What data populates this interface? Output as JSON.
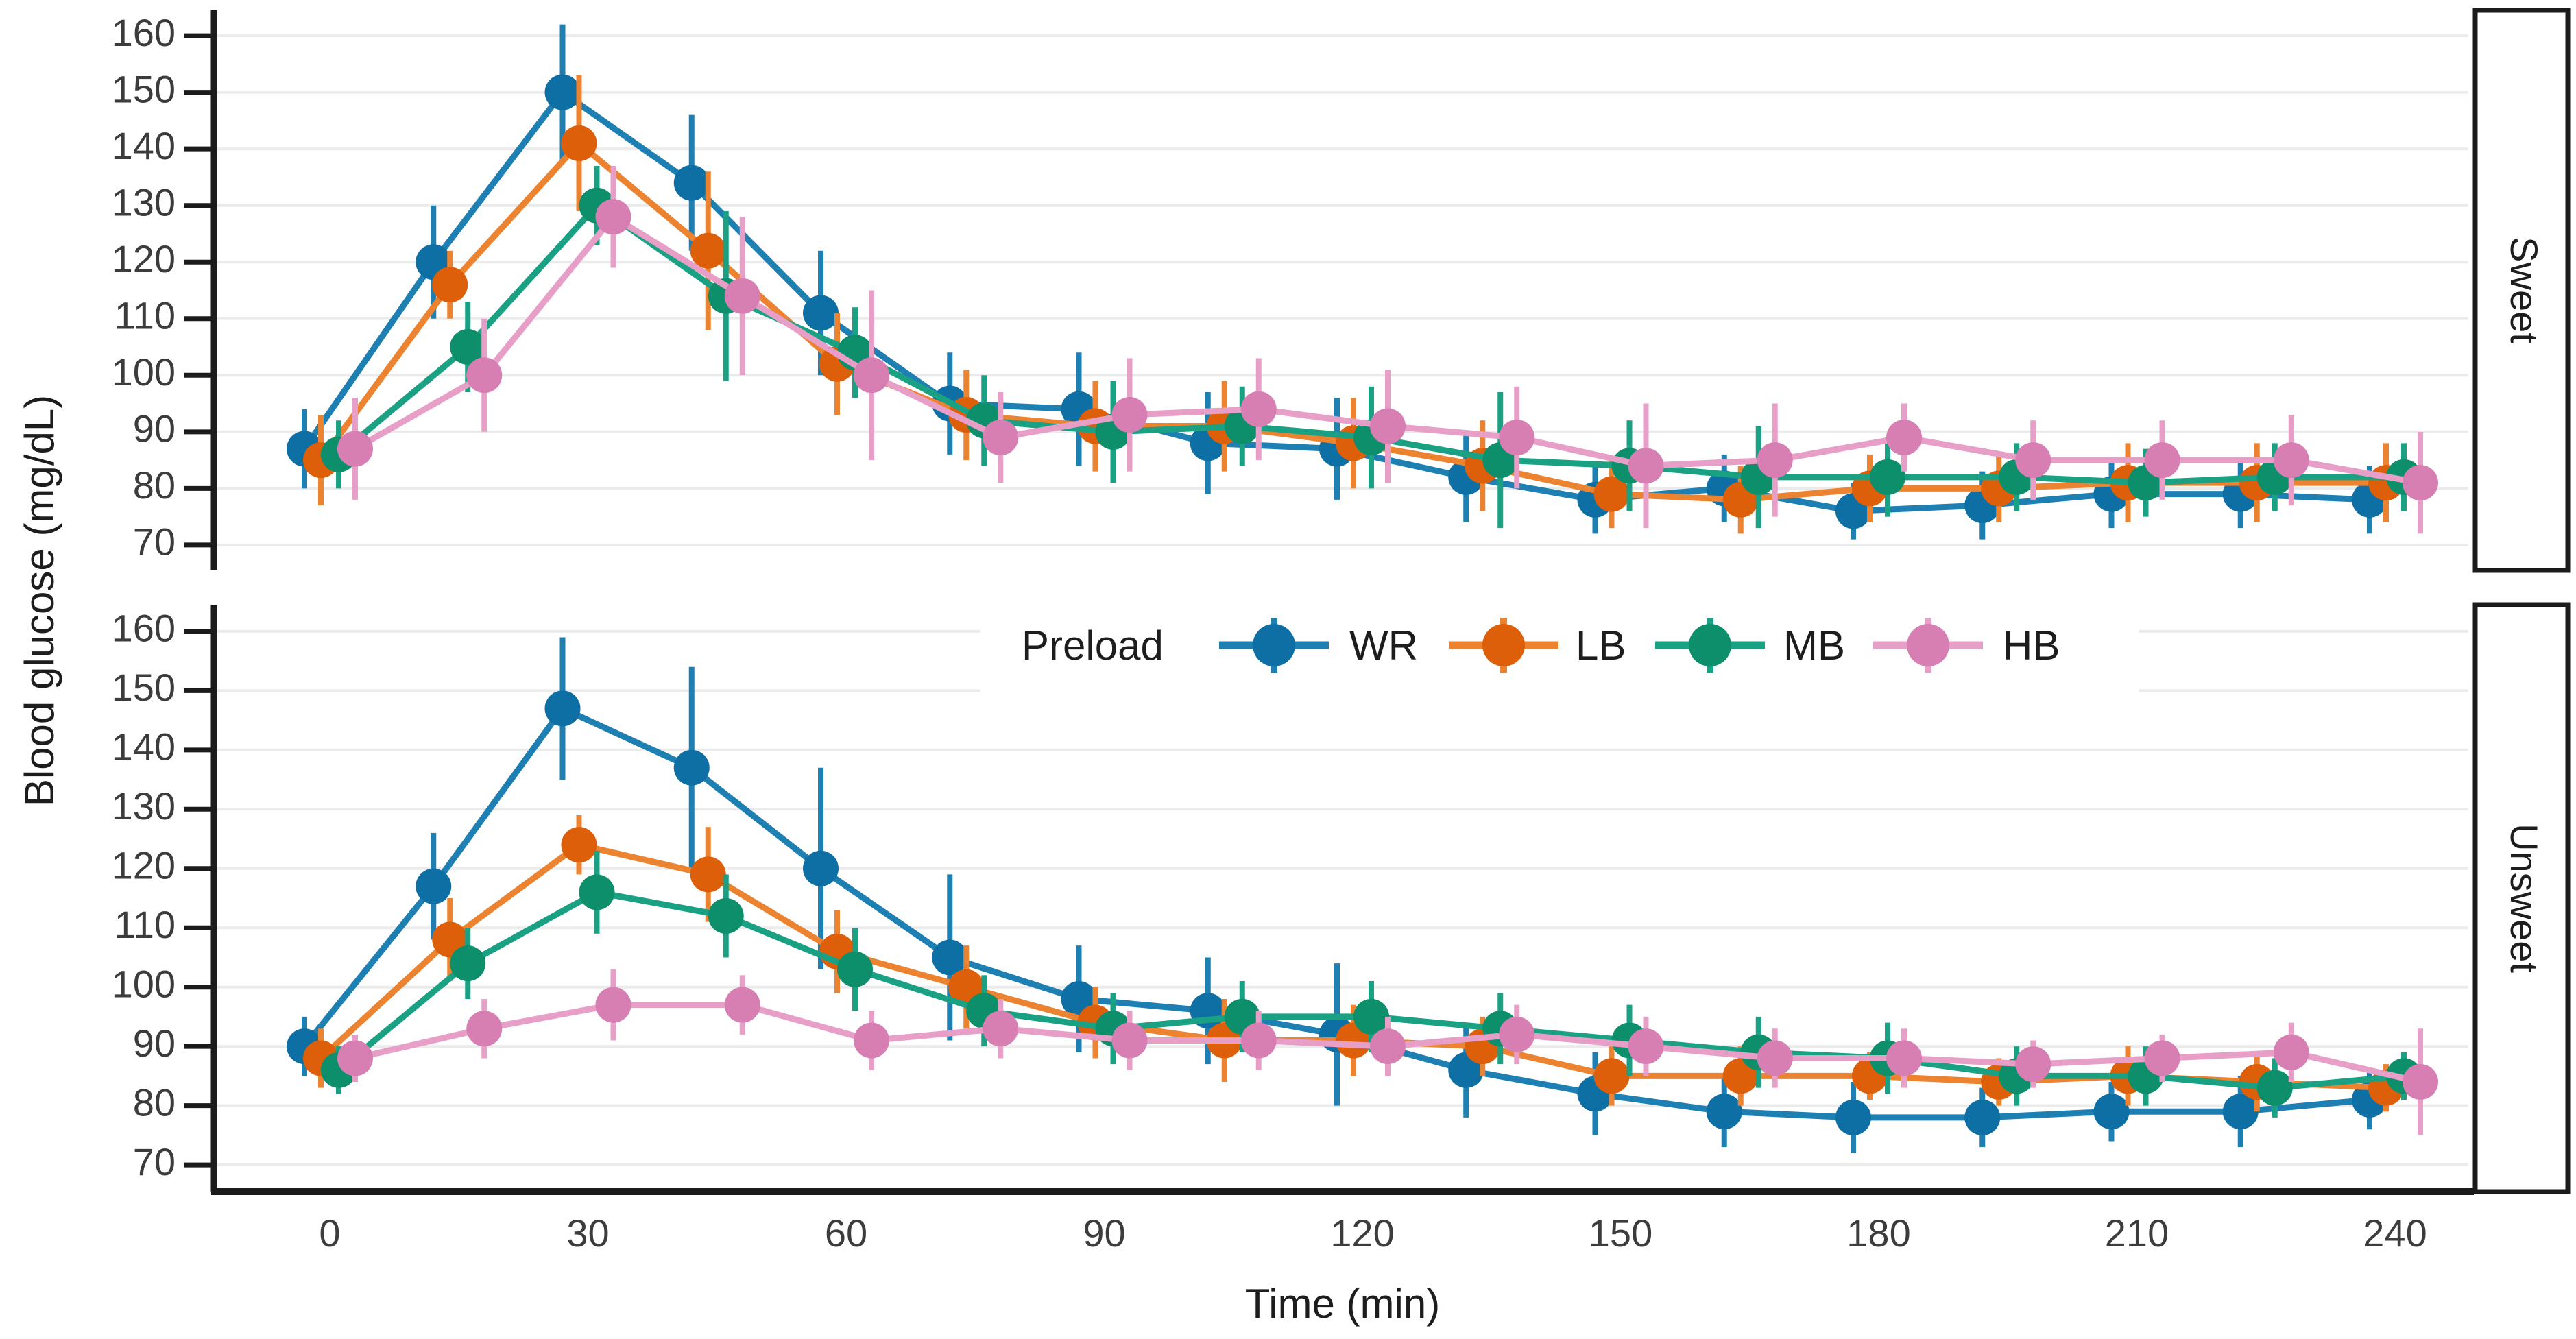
{
  "figure": {
    "type_hint": "faceted errorbar line chart",
    "background": "#ffffff"
  },
  "chart_data": {
    "type": "line",
    "title": "",
    "xlabel": "Time (min)",
    "ylabel": "Blood glucose (mg/dL)",
    "legend_title": "Preload",
    "legend_position": "top-center-of-lower-facet",
    "grid": "horizontal-only",
    "x": [
      0,
      15,
      30,
      45,
      60,
      75,
      90,
      105,
      120,
      135,
      150,
      165,
      180,
      195,
      210,
      225,
      240
    ],
    "x_ticks": [
      0,
      30,
      60,
      90,
      120,
      150,
      180,
      210,
      240
    ],
    "y_ticks": [
      70,
      80,
      90,
      100,
      110,
      120,
      130,
      140,
      150,
      160
    ],
    "ylim": [
      65.5,
      164.5
    ],
    "marker": "point-with-vertical-errorbar",
    "facets": [
      {
        "label": "Sweet",
        "series": [
          {
            "name": "WR",
            "line_color": "#1d7fb2",
            "dot_color": "#0d6fa4",
            "values": [
              87,
              120,
              150,
              134,
              111,
              95,
              94,
              88,
              87,
              82,
              78,
              80,
              76,
              77,
              79,
              79,
              78
            ],
            "errors": [
              7,
              10,
              12,
              12,
              11,
              9,
              10,
              9,
              9,
              8,
              6,
              6,
              5,
              6,
              6,
              6,
              6
            ]
          },
          {
            "name": "LB",
            "line_color": "#ec8330",
            "dot_color": "#dd5f0a",
            "values": [
              85,
              116,
              141,
              122,
              102,
              93,
              91,
              91,
              88,
              84,
              79,
              78,
              80,
              80,
              81,
              81,
              81
            ],
            "errors": [
              8,
              6,
              12,
              14,
              9,
              8,
              8,
              8,
              8,
              8,
              6,
              6,
              6,
              6,
              7,
              7,
              7
            ]
          },
          {
            "name": "MB",
            "line_color": "#1aa183",
            "dot_color": "#0c8f6a",
            "values": [
              86,
              105,
              130,
              114,
              104,
              92,
              90,
              91,
              89,
              85,
              84,
              82,
              82,
              82,
              81,
              82,
              82
            ],
            "errors": [
              6,
              8,
              7,
              15,
              8,
              8,
              9,
              7,
              9,
              12,
              8,
              9,
              7,
              6,
              6,
              6,
              6
            ]
          },
          {
            "name": "HB",
            "line_color": "#e79fc8",
            "dot_color": "#d77fb2",
            "values": [
              87,
              100,
              128,
              114,
              100,
              89,
              93,
              94,
              91,
              89,
              84,
              85,
              89,
              85,
              85,
              85,
              81
            ],
            "errors": [
              9,
              10,
              9,
              14,
              15,
              8,
              10,
              9,
              10,
              9,
              11,
              10,
              6,
              7,
              7,
              8,
              9
            ]
          }
        ]
      },
      {
        "label": "Unsweet",
        "series": [
          {
            "name": "WR",
            "line_color": "#1d7fb2",
            "dot_color": "#0d6fa4",
            "values": [
              90,
              117,
              147,
              137,
              120,
              105,
              98,
              96,
              92,
              86,
              82,
              79,
              78,
              78,
              79,
              79,
              81
            ],
            "errors": [
              5,
              9,
              12,
              17,
              17,
              14,
              9,
              9,
              12,
              8,
              7,
              6,
              6,
              5,
              5,
              6,
              5
            ]
          },
          {
            "name": "LB",
            "line_color": "#ec8330",
            "dot_color": "#dd5f0a",
            "values": [
              88,
              108,
              124,
              119,
              106,
              100,
              94,
              91,
              91,
              90,
              85,
              85,
              85,
              84,
              85,
              84,
              83
            ],
            "errors": [
              5,
              7,
              5,
              8,
              7,
              7,
              6,
              7,
              6,
              5,
              5,
              5,
              4,
              4,
              5,
              5,
              4
            ]
          },
          {
            "name": "MB",
            "line_color": "#1aa183",
            "dot_color": "#0c8f6a",
            "values": [
              86,
              104,
              116,
              112,
              103,
              96,
              93,
              95,
              95,
              93,
              91,
              89,
              88,
              85,
              85,
              83,
              85
            ],
            "errors": [
              4,
              6,
              7,
              7,
              7,
              6,
              6,
              6,
              6,
              6,
              6,
              6,
              6,
              5,
              5,
              5,
              4
            ]
          },
          {
            "name": "HB",
            "line_color": "#e79fc8",
            "dot_color": "#d77fb2",
            "values": [
              88,
              93,
              97,
              97,
              91,
              93,
              91,
              91,
              90,
              92,
              90,
              88,
              88,
              87,
              88,
              89,
              84
            ],
            "errors": [
              4,
              5,
              6,
              5,
              5,
              5,
              5,
              5,
              5,
              5,
              5,
              5,
              5,
              4,
              4,
              5,
              9
            ]
          }
        ]
      }
    ],
    "style_colors": {
      "gridline": "#ebebeb",
      "axis": "#1b1b1b",
      "tick_label": "#3c3c3c",
      "facet_strip_border": "#1b1b1b",
      "facet_strip_fill": "#ffffff"
    }
  }
}
